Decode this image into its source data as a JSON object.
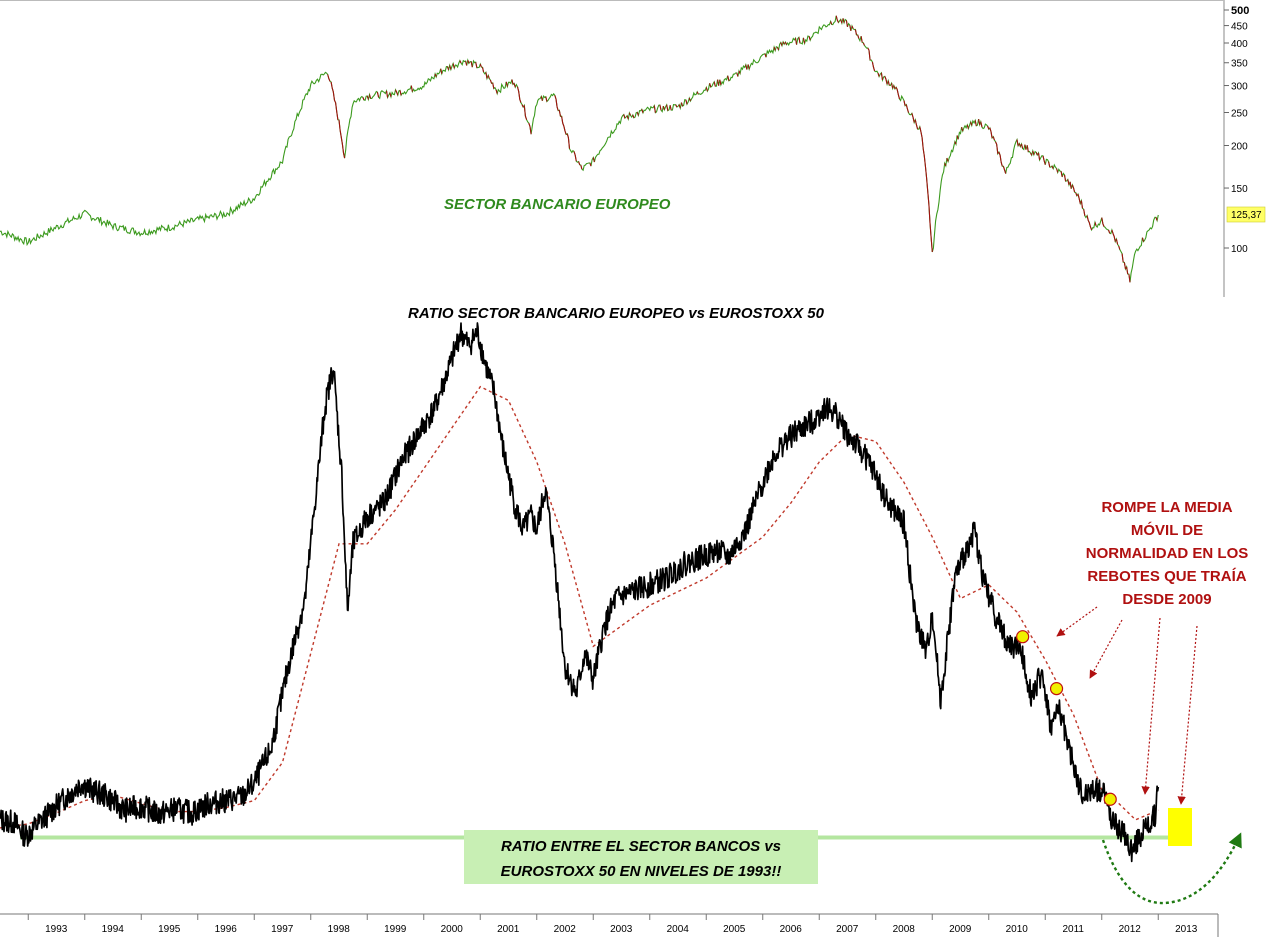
{
  "chart_data": [
    {
      "type": "line",
      "title": "SECTOR BANCARIO EUROPEO",
      "scale": "log",
      "y_ticks": [
        100,
        150,
        200,
        250,
        300,
        350,
        400,
        450,
        500
      ],
      "last_value_label": "125,37",
      "x_range": [
        1992.5,
        2013.3
      ],
      "series": [
        {
          "x": [
            1992.5,
            1993.0,
            1993.5,
            1994.0,
            1994.5,
            1995.0,
            1995.5,
            1996.0,
            1996.5,
            1997.0,
            1997.5,
            1998.0,
            1998.3,
            1998.6,
            1998.75,
            1999.0,
            1999.5,
            2000.0,
            2000.3,
            2000.7,
            2001.0,
            2001.3,
            2001.6,
            2001.9,
            2002.0,
            2002.3,
            2002.6,
            2002.8,
            2003.0,
            2003.5,
            2004.0,
            2004.5,
            2005.0,
            2005.5,
            2006.0,
            2006.4,
            2006.8,
            2007.0,
            2007.3,
            2007.5,
            2007.8,
            2008.0,
            2008.3,
            2008.6,
            2008.8,
            2009.0,
            2009.2,
            2009.5,
            2009.8,
            2010.0,
            2010.3,
            2010.5,
            2010.8,
            2011.0,
            2011.3,
            2011.6,
            2011.8,
            2012.0,
            2012.2,
            2012.5,
            2012.6,
            2012.8,
            2013.0
          ],
          "values": [
            112,
            104,
            115,
            126,
            116,
            111,
            115,
            121,
            126,
            140,
            180,
            300,
            330,
            185,
            270,
            280,
            285,
            300,
            330,
            355,
            340,
            290,
            310,
            220,
            270,
            280,
            195,
            170,
            180,
            240,
            255,
            260,
            295,
            320,
            365,
            400,
            410,
            440,
            470,
            455,
            400,
            330,
            300,
            250,
            220,
            95,
            170,
            220,
            235,
            225,
            165,
            205,
            190,
            180,
            165,
            140,
            115,
            120,
            110,
            80,
            98,
            110,
            125
          ]
        }
      ]
    },
    {
      "type": "line",
      "title": "RATIO SECTOR BANCARIO EUROPEO vs EUROSTOXX 50",
      "x_tick_labels": [
        "1993",
        "1994",
        "1995",
        "1996",
        "1997",
        "1998",
        "1999",
        "2000",
        "2001",
        "2002",
        "2003",
        "2004",
        "2005",
        "2006",
        "2007",
        "2008",
        "2009",
        "2010",
        "2011",
        "2012",
        "2013"
      ],
      "x_range": [
        1992.5,
        2013.3
      ],
      "y_axis_labels": "none",
      "series": [
        {
          "x": [
            1992.5,
            1992.75,
            1992.95,
            1993.3,
            1993.6,
            1993.95,
            1994.1,
            1994.4,
            1994.7,
            1995.0,
            1995.3,
            1995.6,
            1995.9,
            1996.2,
            1996.5,
            1996.8,
            1997.0,
            1997.3,
            1997.6,
            1997.9,
            1998.1,
            1998.25,
            1998.4,
            1998.55,
            1998.65,
            1998.75,
            1999.0,
            1999.3,
            1999.6,
            1999.9,
            2000.2,
            2000.5,
            2000.65,
            2000.8,
            2000.95,
            2001.1,
            2001.25,
            2001.4,
            2001.6,
            2001.75,
            2001.9,
            2002.0,
            2002.15,
            2002.3,
            2002.5,
            2002.7,
            2002.85,
            2003.0,
            2003.2,
            2003.4,
            2003.7,
            2004.0,
            2004.3,
            2004.6,
            2004.9,
            2005.2,
            2005.4,
            2005.7,
            2006.0,
            2006.2,
            2006.4,
            2006.6,
            2006.9,
            2007.1,
            2007.3,
            2007.5,
            2007.8,
            2008.0,
            2008.2,
            2008.5,
            2008.7,
            2008.9,
            2009.0,
            2009.15,
            2009.4,
            2009.6,
            2009.75,
            2009.9,
            2010.1,
            2010.35,
            2010.55,
            2010.75,
            2010.95,
            2011.1,
            2011.25,
            2011.45,
            2011.65,
            2011.85,
            2012.05,
            2012.2,
            2012.35,
            2012.55,
            2012.65,
            2012.8,
            2012.95,
            2013.0
          ],
          "values": [
            0.28,
            0.26,
            0.16,
            0.3,
            0.42,
            0.55,
            0.5,
            0.45,
            0.35,
            0.38,
            0.32,
            0.36,
            0.33,
            0.4,
            0.42,
            0.45,
            0.55,
            0.8,
            1.4,
            1.9,
            2.7,
            3.3,
            3.6,
            2.8,
            1.8,
            2.3,
            2.5,
            2.6,
            2.9,
            3.1,
            3.3,
            3.65,
            3.85,
            3.75,
            3.85,
            3.6,
            3.4,
            3.0,
            2.6,
            2.4,
            2.5,
            2.4,
            2.7,
            2.25,
            1.4,
            1.2,
            1.5,
            1.3,
            1.7,
            1.9,
            1.95,
            2.0,
            2.05,
            2.15,
            2.2,
            2.25,
            2.2,
            2.4,
            2.75,
            2.95,
            3.05,
            3.12,
            3.2,
            3.3,
            3.25,
            3.1,
            2.95,
            2.8,
            2.6,
            2.45,
            1.75,
            1.5,
            1.8,
            1.15,
            2.05,
            2.25,
            2.4,
            2.05,
            1.8,
            1.55,
            1.55,
            1.2,
            1.35,
            0.95,
            1.1,
            0.75,
            0.45,
            0.5,
            0.48,
            0.25,
            0.2,
            0.05,
            0.15,
            0.22,
            0.32,
            0.52
          ]
        },
        {
          "x": [
            1992.5,
            1993.0,
            1993.5,
            1994.0,
            1994.5,
            1995.0,
            1995.5,
            1996.0,
            1996.5,
            1997.0,
            1997.5,
            1998.0,
            1998.5,
            1999.0,
            1999.5,
            2000.0,
            2000.5,
            2001.0,
            2001.5,
            2002.0,
            2002.5,
            2003.0,
            2003.5,
            2004.0,
            2004.5,
            2005.0,
            2005.5,
            2006.0,
            2006.5,
            2007.0,
            2007.5,
            2008.0,
            2008.5,
            2009.0,
            2009.5,
            2010.0,
            2010.5,
            2011.0,
            2011.5,
            2012.0,
            2012.3,
            2012.6,
            2013.0
          ],
          "values": [
            0.22,
            0.25,
            0.33,
            0.42,
            0.46,
            0.4,
            0.34,
            0.34,
            0.37,
            0.42,
            0.7,
            1.5,
            2.3,
            2.3,
            2.55,
            2.85,
            3.15,
            3.45,
            3.35,
            2.9,
            2.3,
            1.55,
            1.7,
            1.85,
            1.95,
            2.05,
            2.2,
            2.35,
            2.6,
            2.9,
            3.1,
            3.05,
            2.75,
            2.35,
            1.9,
            2.0,
            1.8,
            1.45,
            1.05,
            0.5,
            0.4,
            0.28,
            0.35
          ]
        }
      ],
      "reference_line_value": 0.15,
      "highlight_points": [
        {
          "x": 2010.6,
          "y": 1.62
        },
        {
          "x": 2011.2,
          "y": 1.24
        },
        {
          "x": 2012.15,
          "y": 0.43
        }
      ]
    }
  ],
  "annotations": {
    "bottom_title": "RATIO SECTOR BANCARIO EUROPEO vs EUROSTOXX 50",
    "top_label": "SECTOR BANCARIO EUROPEO",
    "red_note": [
      "ROMPE LA MEDIA",
      "MÓVIL DE",
      "NORMALIDAD EN LOS",
      "REBOTES QUE TRAÍA",
      "DESDE 2009"
    ],
    "green_note": [
      "RATIO ENTRE EL SECTOR BANCOS vs",
      "EUROSTOXX 50 EN NIVELES DE 1993!!"
    ]
  },
  "colors": {
    "top_line": "#3c9a1e",
    "top_down": "#a01010",
    "ratio_line": "#000000",
    "moving_average": "#c0392b",
    "annotation_red": "#b01010",
    "annotation_green_text": "#2f8a1e",
    "green_box": "#c8efb4",
    "reference_line": "#b4e6a0",
    "highlight": "#ffff00",
    "marker": "#f0f000"
  }
}
